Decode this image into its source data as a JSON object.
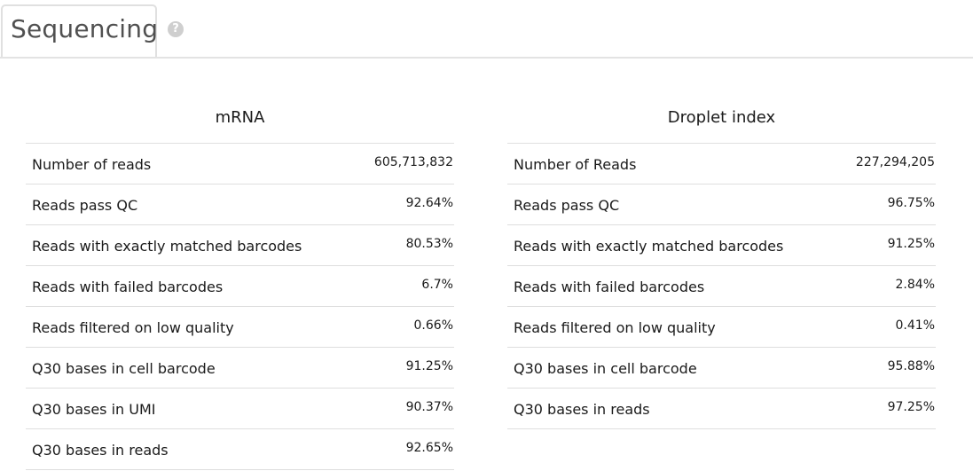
{
  "header": {
    "tab_title": "Sequencing",
    "help_glyph": "?",
    "help_icon": "question-circle-icon"
  },
  "mrna": {
    "title": "mRNA",
    "rows": [
      {
        "label": "Number of reads",
        "value": "605,713,832"
      },
      {
        "label": "Reads pass QC",
        "value": "92.64%"
      },
      {
        "label": "Reads with exactly matched barcodes",
        "value": "80.53%"
      },
      {
        "label": "Reads with failed barcodes",
        "value": "6.7%"
      },
      {
        "label": "Reads filtered on low quality",
        "value": "0.66%"
      },
      {
        "label": "Q30 bases in cell barcode",
        "value": "91.25%"
      },
      {
        "label": "Q30 bases in UMI",
        "value": "90.37%"
      },
      {
        "label": "Q30 bases in reads",
        "value": "92.65%"
      }
    ]
  },
  "droplet": {
    "title": "Droplet index",
    "rows": [
      {
        "label": "Number of Reads",
        "value": "227,294,205"
      },
      {
        "label": "Reads pass QC",
        "value": "96.75%"
      },
      {
        "label": "Reads with exactly matched barcodes",
        "value": "91.25%"
      },
      {
        "label": "Reads with failed barcodes",
        "value": "2.84%"
      },
      {
        "label": "Reads filtered on low quality",
        "value": "0.41%"
      },
      {
        "label": "Q30 bases in cell barcode",
        "value": "95.88%"
      },
      {
        "label": "Q30 bases in reads",
        "value": "97.25%"
      }
    ]
  }
}
